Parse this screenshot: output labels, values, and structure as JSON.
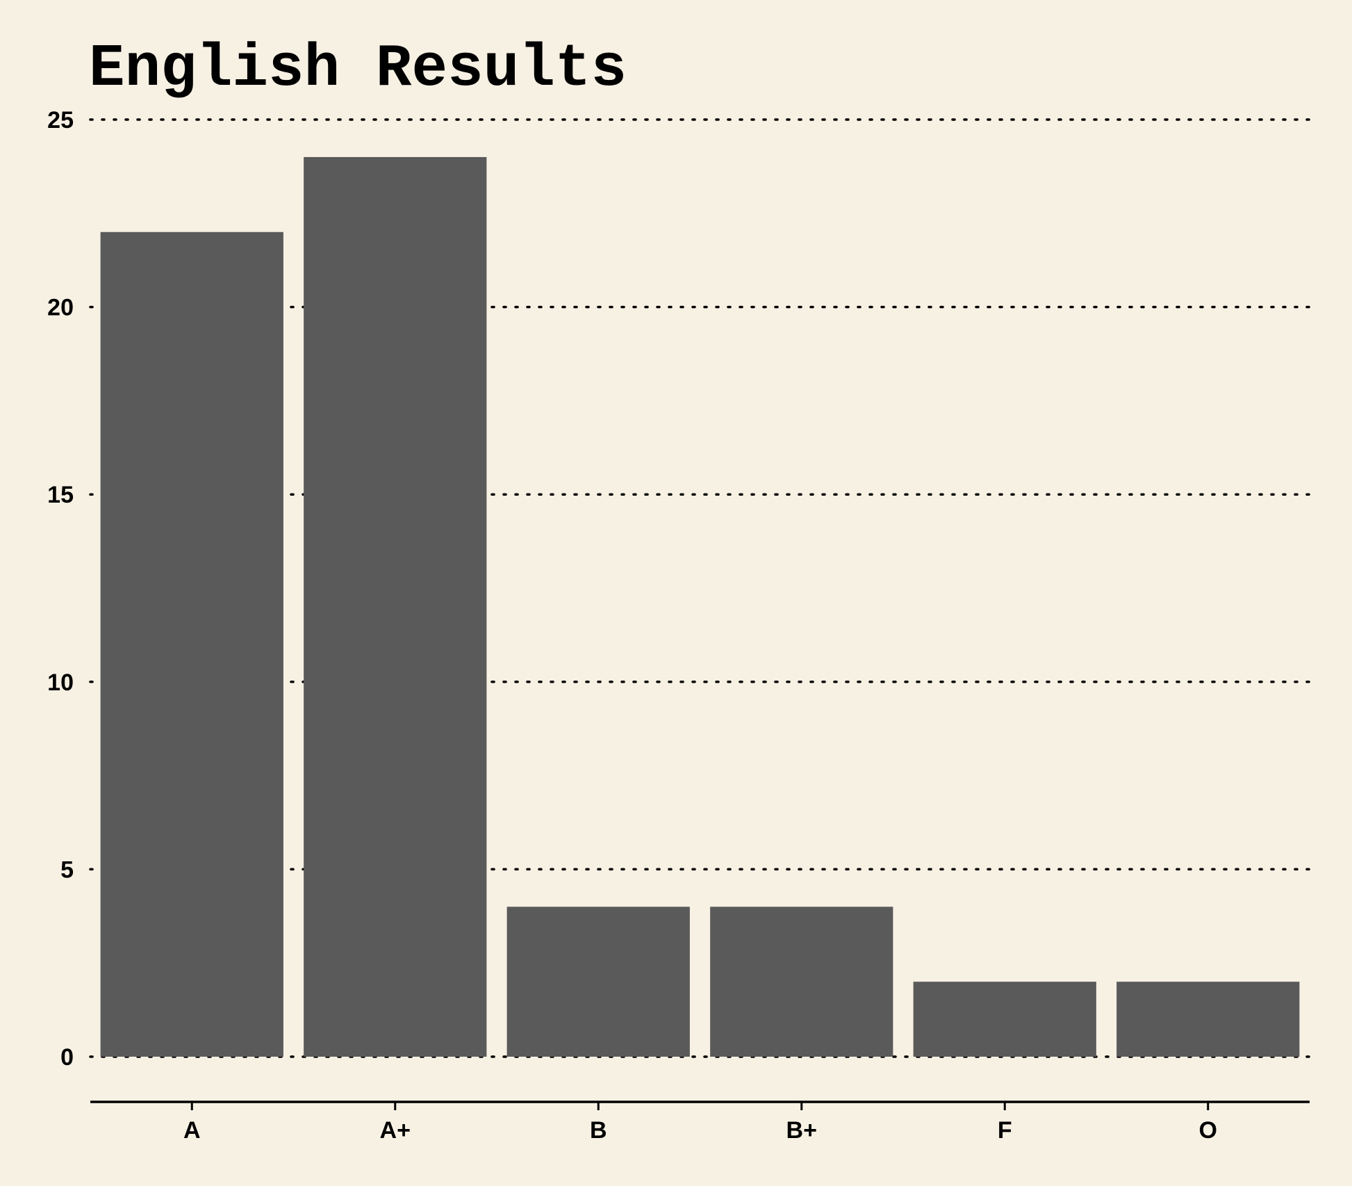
{
  "chart_data": {
    "type": "bar",
    "title": "English Results",
    "xlabel": "",
    "ylabel": "",
    "categories": [
      "A",
      "A+",
      "B",
      "B+",
      "F",
      "O"
    ],
    "values": [
      22,
      24,
      4,
      4,
      2,
      2
    ],
    "ylim": [
      0,
      25
    ],
    "yticks": [
      0,
      5,
      10,
      15,
      20,
      25
    ],
    "grid": "horizontal-dotted",
    "legend": "none",
    "colors": {
      "background": "#f7f1e4",
      "bar": "#5a5a5a",
      "text": "#000000",
      "grid": "#000000"
    }
  }
}
